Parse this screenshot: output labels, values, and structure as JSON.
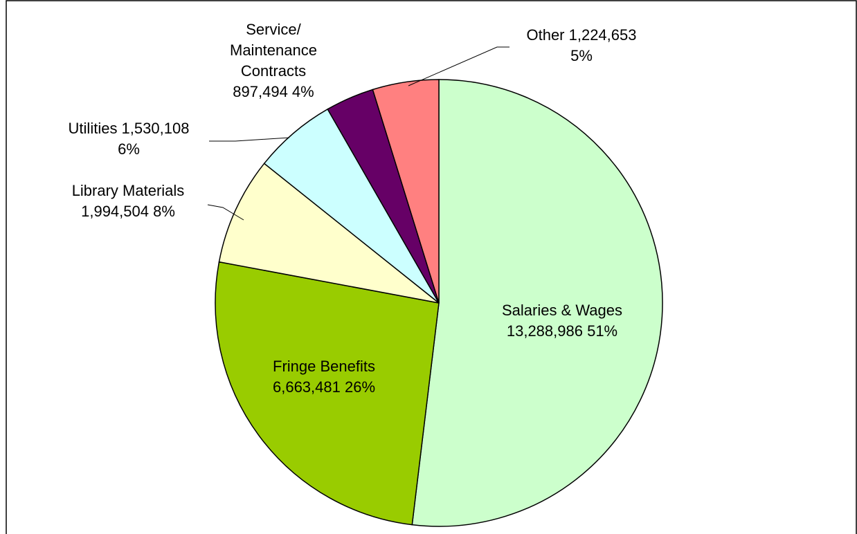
{
  "chart_data": {
    "type": "pie",
    "title": "",
    "start_angle_deg": 0,
    "direction": "clockwise",
    "slices": [
      {
        "name": "Salaries & Wages",
        "value": 13288986,
        "value_label": "13,288,986",
        "percent_label": "51%",
        "color": "#CCFFCC",
        "label_lines": [
          "Salaries & Wages",
          "13,288,986  51%"
        ]
      },
      {
        "name": "Fringe Benefits",
        "value": 6663481,
        "value_label": "6,663,481",
        "percent_label": "26%",
        "color": "#99CC00",
        "label_lines": [
          "Fringe Benefits",
          "6,663,481  26%"
        ]
      },
      {
        "name": "Library Materials",
        "value": 1994504,
        "value_label": "1,994,504",
        "percent_label": "8%",
        "color": "#FFFFCC",
        "label_lines": [
          "Library Materials",
          "1,994,504  8%"
        ]
      },
      {
        "name": "Utilities",
        "value": 1530108,
        "value_label": "1,530,108",
        "percent_label": "6%",
        "color": "#CCFFFF",
        "label_lines": [
          "Utilities 1,530,108",
          "6%"
        ]
      },
      {
        "name": "Service/ Maintenance Contracts",
        "value": 897494,
        "value_label": "897,494",
        "percent_label": "4%",
        "color": "#660066",
        "label_lines": [
          "Service/",
          "Maintenance",
          "Contracts",
          "897,494  4%"
        ]
      },
      {
        "name": "Other",
        "value": 1224653,
        "value_label": "1,224,653",
        "percent_label": "5%",
        "color": "#FF8080",
        "label_lines": [
          "Other 1,224,653",
          "5%"
        ]
      }
    ]
  }
}
